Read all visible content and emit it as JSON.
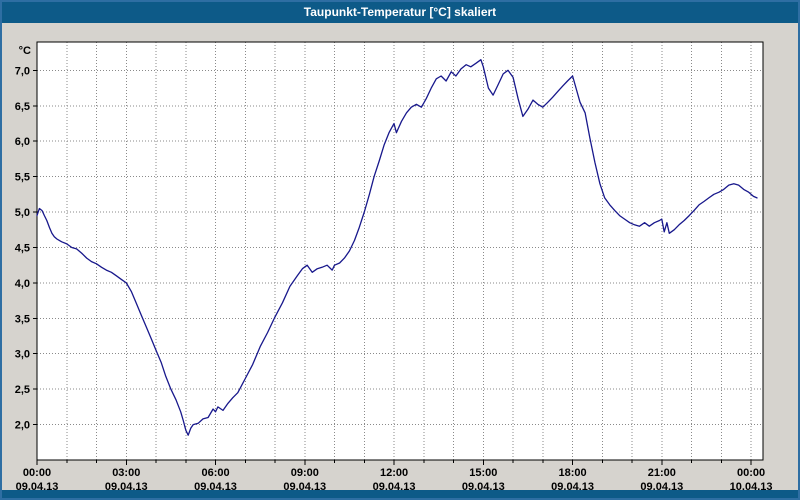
{
  "window": {
    "title": "Taupunkt-Temperatur [°C] skaliert"
  },
  "colors": {
    "titlebar_bg": "#0d5a88",
    "frame_border": "#2e6ea3",
    "chart_bg": "#d6d3ce",
    "plot_bg": "#ffffff",
    "line": "#18188c",
    "grid": "#8a8a8a",
    "axis": "#000000",
    "title_text": "#ffffff"
  },
  "chart_data": {
    "type": "line",
    "title": "Taupunkt-Temperatur [°C] skaliert",
    "xlabel": "",
    "ylabel": "°C",
    "ylim": [
      1.5,
      7.4
    ],
    "xlim": [
      0,
      24.4
    ],
    "grid": "dotted; vertical every 1 hour, horizontal every 0.5 °C",
    "legend_position": "none",
    "y_ticks": [
      {
        "value": 7.0,
        "label": "7,0"
      },
      {
        "value": 6.5,
        "label": "6,5"
      },
      {
        "value": 6.0,
        "label": "6,0"
      },
      {
        "value": 5.5,
        "label": "5,5"
      },
      {
        "value": 5.0,
        "label": "5,0"
      },
      {
        "value": 4.5,
        "label": "4,5"
      },
      {
        "value": 4.0,
        "label": "4,0"
      },
      {
        "value": 3.5,
        "label": "3,5"
      },
      {
        "value": 3.0,
        "label": "3,0"
      },
      {
        "value": 2.5,
        "label": "2,5"
      },
      {
        "value": 2.0,
        "label": "2,0"
      }
    ],
    "x_ticks": [
      {
        "hour": 0,
        "time": "00:00",
        "date": "09.04.13"
      },
      {
        "hour": 3,
        "time": "03:00",
        "date": "09.04.13"
      },
      {
        "hour": 6,
        "time": "06:00",
        "date": "09.04.13"
      },
      {
        "hour": 9,
        "time": "09:00",
        "date": "09.04.13"
      },
      {
        "hour": 12,
        "time": "12:00",
        "date": "09.04.13"
      },
      {
        "hour": 15,
        "time": "15:00",
        "date": "09.04.13"
      },
      {
        "hour": 18,
        "time": "18:00",
        "date": "09.04.13"
      },
      {
        "hour": 21,
        "time": "21:00",
        "date": "09.04.13"
      },
      {
        "hour": 24,
        "time": "00:00",
        "date": "10.04.13"
      }
    ],
    "series": [
      {
        "name": "Taupunkt-Temperatur",
        "color": "#18188c",
        "points": [
          [
            0,
            4.95
          ],
          [
            0.08,
            5.05
          ],
          [
            0.17,
            5.02
          ],
          [
            0.25,
            4.95
          ],
          [
            0.33,
            4.88
          ],
          [
            0.42,
            4.78
          ],
          [
            0.5,
            4.7
          ],
          [
            0.58,
            4.65
          ],
          [
            0.67,
            4.62
          ],
          [
            0.75,
            4.6
          ],
          [
            0.83,
            4.58
          ],
          [
            1,
            4.55
          ],
          [
            1.17,
            4.5
          ],
          [
            1.33,
            4.48
          ],
          [
            1.5,
            4.42
          ],
          [
            1.67,
            4.35
          ],
          [
            1.83,
            4.3
          ],
          [
            2,
            4.27
          ],
          [
            2.17,
            4.22
          ],
          [
            2.33,
            4.18
          ],
          [
            2.5,
            4.15
          ],
          [
            2.67,
            4.1
          ],
          [
            2.83,
            4.05
          ],
          [
            3,
            4.0
          ],
          [
            3.17,
            3.88
          ],
          [
            3.33,
            3.72
          ],
          [
            3.5,
            3.55
          ],
          [
            3.67,
            3.38
          ],
          [
            3.83,
            3.22
          ],
          [
            4,
            3.05
          ],
          [
            4.17,
            2.88
          ],
          [
            4.33,
            2.68
          ],
          [
            4.5,
            2.5
          ],
          [
            4.67,
            2.35
          ],
          [
            4.83,
            2.18
          ],
          [
            4.92,
            2.05
          ],
          [
            5,
            1.92
          ],
          [
            5.08,
            1.85
          ],
          [
            5.17,
            1.95
          ],
          [
            5.25,
            2.0
          ],
          [
            5.42,
            2.02
          ],
          [
            5.58,
            2.08
          ],
          [
            5.75,
            2.1
          ],
          [
            5.92,
            2.22
          ],
          [
            6,
            2.18
          ],
          [
            6.08,
            2.25
          ],
          [
            6.25,
            2.2
          ],
          [
            6.42,
            2.3
          ],
          [
            6.58,
            2.38
          ],
          [
            6.75,
            2.45
          ],
          [
            7,
            2.65
          ],
          [
            7.25,
            2.85
          ],
          [
            7.5,
            3.1
          ],
          [
            7.75,
            3.3
          ],
          [
            8,
            3.52
          ],
          [
            8.25,
            3.72
          ],
          [
            8.5,
            3.95
          ],
          [
            8.75,
            4.1
          ],
          [
            8.92,
            4.2
          ],
          [
            9.08,
            4.25
          ],
          [
            9.25,
            4.15
          ],
          [
            9.42,
            4.2
          ],
          [
            9.58,
            4.22
          ],
          [
            9.75,
            4.25
          ],
          [
            9.92,
            4.18
          ],
          [
            10,
            4.25
          ],
          [
            10.17,
            4.28
          ],
          [
            10.33,
            4.35
          ],
          [
            10.5,
            4.45
          ],
          [
            10.67,
            4.6
          ],
          [
            10.83,
            4.78
          ],
          [
            11,
            5.0
          ],
          [
            11.17,
            5.25
          ],
          [
            11.33,
            5.5
          ],
          [
            11.5,
            5.72
          ],
          [
            11.67,
            5.95
          ],
          [
            11.83,
            6.12
          ],
          [
            12,
            6.25
          ],
          [
            12.08,
            6.12
          ],
          [
            12.25,
            6.28
          ],
          [
            12.42,
            6.4
          ],
          [
            12.58,
            6.48
          ],
          [
            12.75,
            6.52
          ],
          [
            12.92,
            6.48
          ],
          [
            13.08,
            6.6
          ],
          [
            13.25,
            6.75
          ],
          [
            13.42,
            6.88
          ],
          [
            13.58,
            6.92
          ],
          [
            13.75,
            6.85
          ],
          [
            13.92,
            6.98
          ],
          [
            14.08,
            6.92
          ],
          [
            14.25,
            7.02
          ],
          [
            14.42,
            7.08
          ],
          [
            14.58,
            7.05
          ],
          [
            14.75,
            7.1
          ],
          [
            14.92,
            7.15
          ],
          [
            15,
            7.05
          ],
          [
            15.17,
            6.75
          ],
          [
            15.33,
            6.65
          ],
          [
            15.5,
            6.8
          ],
          [
            15.67,
            6.95
          ],
          [
            15.83,
            7.0
          ],
          [
            16,
            6.9
          ],
          [
            16.17,
            6.6
          ],
          [
            16.33,
            6.35
          ],
          [
            16.5,
            6.45
          ],
          [
            16.67,
            6.58
          ],
          [
            16.83,
            6.52
          ],
          [
            17,
            6.48
          ],
          [
            17.17,
            6.55
          ],
          [
            17.33,
            6.62
          ],
          [
            17.5,
            6.7
          ],
          [
            17.67,
            6.78
          ],
          [
            17.83,
            6.85
          ],
          [
            18,
            6.92
          ],
          [
            18.08,
            6.8
          ],
          [
            18.25,
            6.55
          ],
          [
            18.42,
            6.4
          ],
          [
            18.58,
            6.05
          ],
          [
            18.75,
            5.7
          ],
          [
            18.92,
            5.4
          ],
          [
            19.08,
            5.2
          ],
          [
            19.25,
            5.1
          ],
          [
            19.42,
            5.02
          ],
          [
            19.58,
            4.95
          ],
          [
            19.75,
            4.9
          ],
          [
            19.92,
            4.85
          ],
          [
            20.08,
            4.82
          ],
          [
            20.25,
            4.8
          ],
          [
            20.42,
            4.85
          ],
          [
            20.58,
            4.8
          ],
          [
            20.75,
            4.85
          ],
          [
            20.92,
            4.88
          ],
          [
            21,
            4.9
          ],
          [
            21.08,
            4.72
          ],
          [
            21.17,
            4.85
          ],
          [
            21.25,
            4.7
          ],
          [
            21.42,
            4.75
          ],
          [
            21.58,
            4.82
          ],
          [
            21.75,
            4.88
          ],
          [
            21.92,
            4.95
          ],
          [
            22.08,
            5.02
          ],
          [
            22.25,
            5.1
          ],
          [
            22.42,
            5.15
          ],
          [
            22.58,
            5.2
          ],
          [
            22.75,
            5.25
          ],
          [
            22.92,
            5.28
          ],
          [
            23.08,
            5.32
          ],
          [
            23.25,
            5.38
          ],
          [
            23.42,
            5.4
          ],
          [
            23.58,
            5.38
          ],
          [
            23.75,
            5.32
          ],
          [
            23.92,
            5.28
          ],
          [
            24.08,
            5.22
          ],
          [
            24.2,
            5.2
          ]
        ]
      }
    ]
  }
}
